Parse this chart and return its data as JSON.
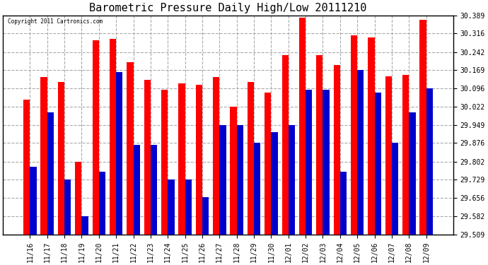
{
  "title": "Barometric Pressure Daily High/Low 20111210",
  "copyright": "Copyright 2011 Cartronics.com",
  "dates": [
    "11/16",
    "11/17",
    "11/18",
    "11/19",
    "11/20",
    "11/21",
    "11/22",
    "11/23",
    "11/24",
    "11/25",
    "11/26",
    "11/27",
    "11/28",
    "11/29",
    "11/30",
    "12/01",
    "12/02",
    "12/03",
    "12/04",
    "12/05",
    "12/06",
    "12/07",
    "12/08",
    "12/09"
  ],
  "highs": [
    30.05,
    30.14,
    30.12,
    29.802,
    30.29,
    30.295,
    30.2,
    30.13,
    30.09,
    30.115,
    30.11,
    30.14,
    30.022,
    30.12,
    30.08,
    30.23,
    30.38,
    30.23,
    30.19,
    30.31,
    30.3,
    30.145,
    30.15,
    30.37
  ],
  "lows": [
    29.78,
    29.998,
    29.73,
    29.582,
    29.76,
    30.16,
    29.87,
    29.87,
    29.73,
    29.73,
    29.66,
    29.949,
    29.949,
    29.876,
    29.92,
    29.949,
    30.09,
    30.09,
    29.76,
    30.169,
    30.08,
    29.876,
    29.998,
    30.096
  ],
  "ymin": 29.509,
  "ymax": 30.389,
  "yticks": [
    29.509,
    29.582,
    29.656,
    29.729,
    29.802,
    29.876,
    29.949,
    30.022,
    30.096,
    30.169,
    30.242,
    30.316,
    30.389
  ],
  "bar_width": 0.38,
  "high_color": "#ff0000",
  "low_color": "#0000cc",
  "bg_color": "#ffffff",
  "grid_color": "#aaaaaa",
  "title_fontsize": 11,
  "tick_fontsize": 7,
  "fig_width": 6.9,
  "fig_height": 3.75,
  "dpi": 100
}
